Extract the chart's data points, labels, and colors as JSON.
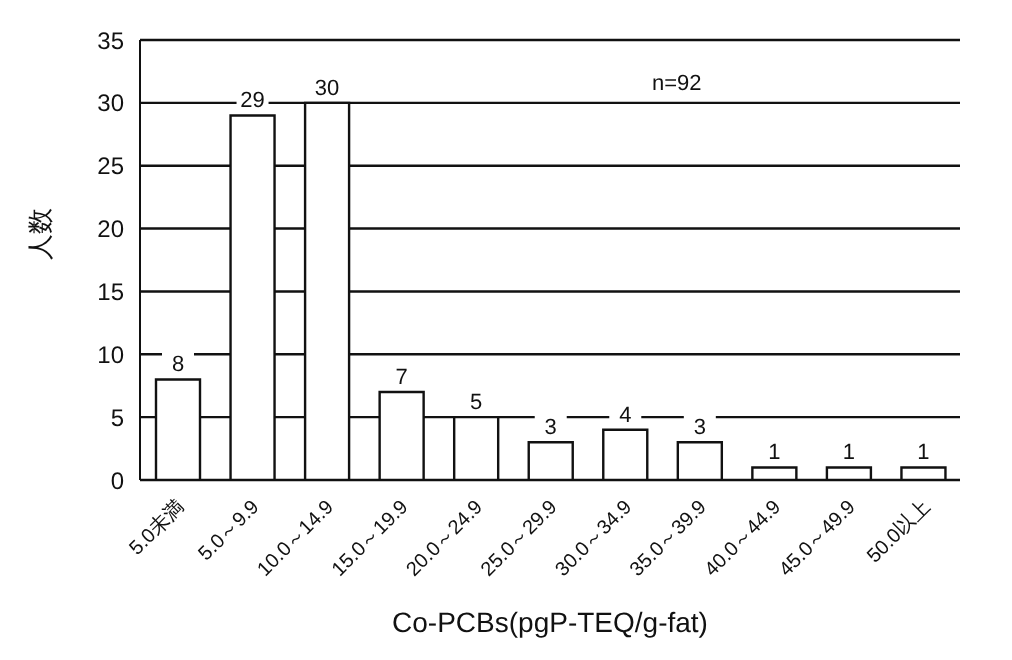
{
  "chart_data": {
    "type": "bar",
    "xlabel": "Co-PCBs(pgP-TEQ/g-fat)",
    "ylabel": "人数",
    "categories": [
      "5.0未満",
      "5.0～9.9",
      "10.0～14.9",
      "15.0～19.9",
      "20.0～24.9",
      "25.0～29.9",
      "30.0～34.9",
      "35.0～39.9",
      "40.0～44.9",
      "45.0～49.9",
      "50.0以上"
    ],
    "values": [
      8,
      29,
      30,
      7,
      5,
      3,
      4,
      3,
      1,
      1,
      1
    ],
    "color": "#ffffff",
    "ylim": [
      0,
      35
    ],
    "yticks": [
      0,
      5,
      10,
      15,
      20,
      25,
      30,
      35
    ],
    "grid": "y",
    "data_labels": true,
    "annotations": [
      "n=92"
    ]
  }
}
